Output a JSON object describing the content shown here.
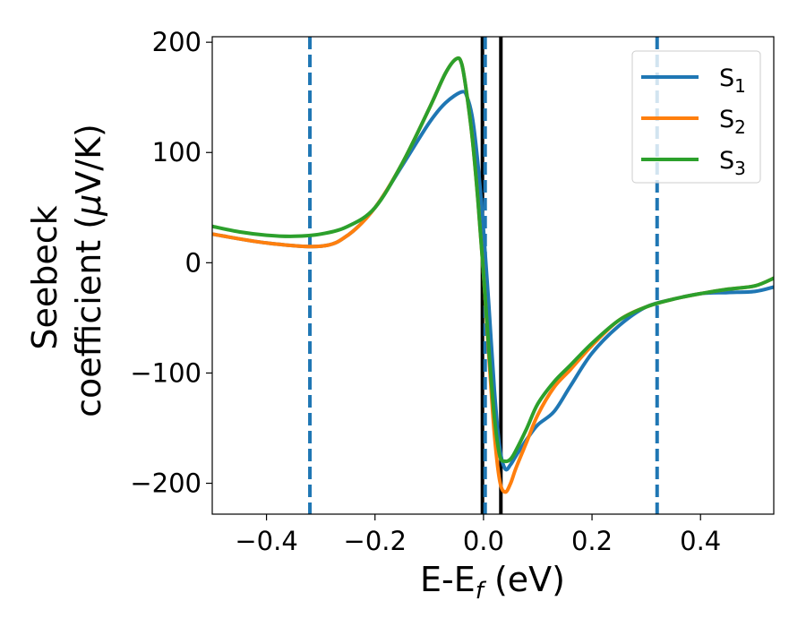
{
  "chart_data": {
    "type": "line",
    "title": "",
    "xlabel": {
      "main": "E-E",
      "sub": "f",
      "suffix": " (eV)"
    },
    "ylabel": {
      "line1": "Seebeck",
      "line2_prefix": "coefficient  (",
      "mu": "μ",
      "line2_suffix": "V/K)"
    },
    "xlim": [
      -0.5,
      0.535
    ],
    "ylim": [
      -228,
      205
    ],
    "xticks": [
      -0.4,
      -0.2,
      0.0,
      0.2,
      0.4
    ],
    "xtick_labels": [
      "−0.4",
      "−0.2",
      "0.0",
      "0.2",
      "0.4"
    ],
    "yticks": [
      200,
      100,
      0,
      -100,
      -200
    ],
    "ytick_labels": [
      "200",
      "100",
      "0",
      "−100",
      "−200"
    ],
    "grid": false,
    "legend_position": "top-right",
    "vlines_dashed": [
      -0.32,
      0.003,
      0.32
    ],
    "vlines_solid": [
      -0.002,
      0.032
    ],
    "series": [
      {
        "name": "S",
        "sub": "1",
        "color": "#1f77b4",
        "x": [
          -0.5,
          -0.4,
          -0.3,
          -0.25,
          -0.2,
          -0.15,
          -0.1,
          -0.07,
          -0.04,
          -0.03,
          -0.02,
          -0.01,
          0.0,
          0.01,
          0.02,
          0.03,
          0.04,
          0.05,
          0.06,
          0.08,
          0.1,
          0.13,
          0.16,
          0.2,
          0.25,
          0.3,
          0.35,
          0.4,
          0.45,
          0.5,
          0.535
        ],
        "y": [
          26,
          18,
          15,
          25,
          50,
          88,
          127,
          145,
          155,
          150,
          130,
          88,
          30,
          -40,
          -115,
          -168,
          -187,
          -183,
          -175,
          -160,
          -147,
          -135,
          -112,
          -82,
          -57,
          -40,
          -33,
          -28,
          -27,
          -26,
          -22
        ]
      },
      {
        "name": "S",
        "sub": "2",
        "color": "#ff7f0e",
        "x": [
          -0.5,
          -0.4,
          -0.3,
          -0.25,
          -0.2,
          -0.15,
          -0.1,
          -0.07,
          -0.05,
          -0.04,
          -0.03,
          -0.02,
          -0.01,
          0.0,
          0.01,
          0.02,
          0.03,
          0.04,
          0.05,
          0.06,
          0.08,
          0.1,
          0.13,
          0.16,
          0.2,
          0.25,
          0.3,
          0.35,
          0.4,
          0.45,
          0.5,
          0.535
        ],
        "y": [
          26,
          18,
          15,
          25,
          50,
          90,
          140,
          172,
          185,
          180,
          150,
          110,
          55,
          -10,
          -85,
          -155,
          -198,
          -208,
          -200,
          -186,
          -162,
          -138,
          -113,
          -97,
          -75,
          -52,
          -40,
          -33,
          -28,
          -24,
          -21,
          -14
        ]
      },
      {
        "name": "S",
        "sub": "3",
        "color": "#2ca02c",
        "x": [
          -0.5,
          -0.45,
          -0.4,
          -0.35,
          -0.3,
          -0.25,
          -0.2,
          -0.15,
          -0.1,
          -0.07,
          -0.05,
          -0.04,
          -0.03,
          -0.02,
          -0.01,
          0.0,
          0.01,
          0.02,
          0.03,
          0.04,
          0.05,
          0.06,
          0.08,
          0.1,
          0.13,
          0.16,
          0.2,
          0.25,
          0.3,
          0.35,
          0.4,
          0.45,
          0.5,
          0.535
        ],
        "y": [
          33,
          28,
          25,
          24,
          26,
          33,
          50,
          90,
          140,
          172,
          185,
          180,
          150,
          110,
          55,
          -10,
          -80,
          -140,
          -175,
          -180,
          -178,
          -170,
          -150,
          -128,
          -108,
          -93,
          -73,
          -52,
          -40,
          -33,
          -28,
          -24,
          -21,
          -14
        ]
      }
    ]
  }
}
